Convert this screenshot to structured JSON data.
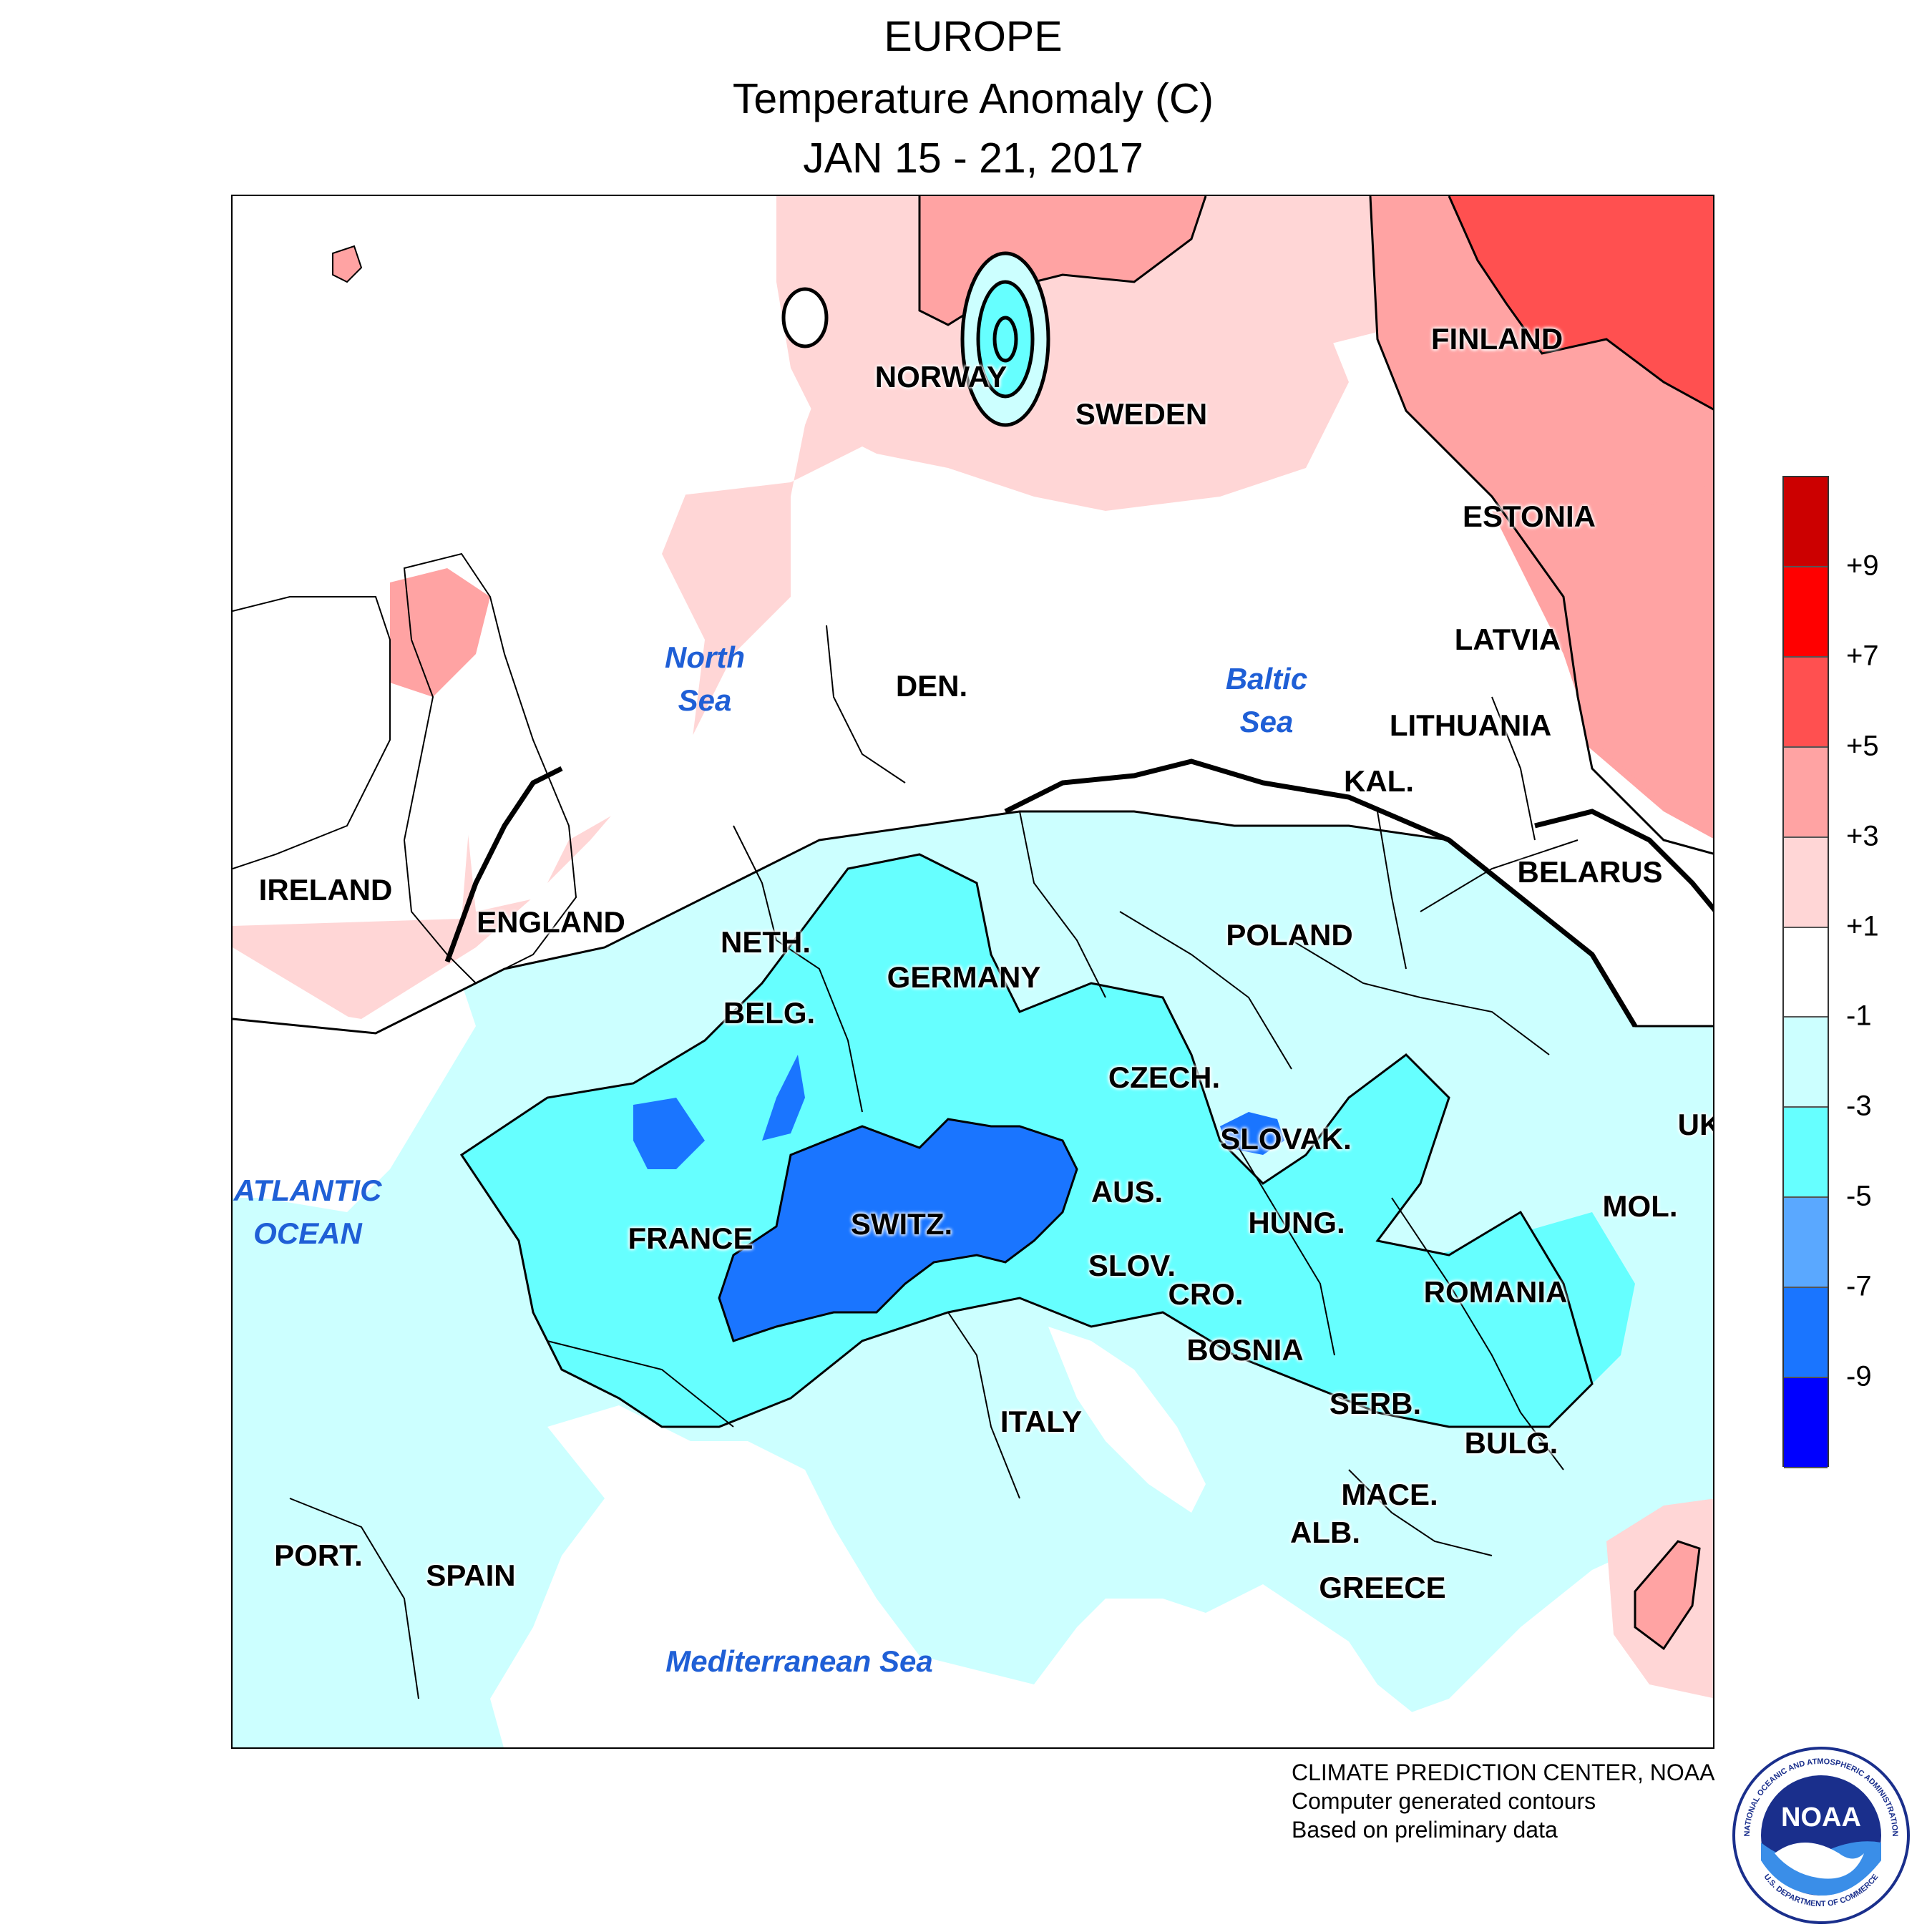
{
  "header": {
    "region": "EUROPE",
    "metric": "Temperature Anomaly (C)",
    "period": "JAN 15 - 21, 2017"
  },
  "map": {
    "country_labels": [
      "IRELAND",
      "ENGLAND",
      "NETH.",
      "BELG.",
      "GERMANY",
      "FRANCE",
      "SWITZ.",
      "NORWAY",
      "SWEDEN",
      "FINLAND",
      "DEN.",
      "ESTONIA",
      "LATVIA",
      "LITHUANIA",
      "KAL.",
      "BELARUS",
      "POLAND",
      "CZECH.",
      "SLOVAK.",
      "AUS.",
      "HUNG.",
      "SLOV.",
      "CRO.",
      "BOSNIA",
      "SERB.",
      "ROMANIA",
      "MOL.",
      "UK",
      "BULG.",
      "MACE.",
      "ALB.",
      "GREECE",
      "ITALY",
      "PORT.",
      "SPAIN"
    ],
    "water_labels": [
      {
        "line1": "North",
        "line2": "Sea"
      },
      {
        "line1": "Baltic",
        "line2": "Sea"
      },
      {
        "line1": "ATLANTIC",
        "line2": "OCEAN"
      },
      {
        "line1": "Mediterranean Sea",
        "line2": ""
      }
    ]
  },
  "legend": {
    "colors": [
      "#cc0000",
      "#ff0000",
      "#ff5050",
      "#ffa3a3",
      "#ffd6d6",
      "#ffffff",
      "#ccffff",
      "#66ffff",
      "#5aa8ff",
      "#1a75ff",
      "#0000ff"
    ],
    "ticks": [
      "+9",
      "+7",
      "+5",
      "+3",
      "+1",
      "-1",
      "-3",
      "-5",
      "-7",
      "-9"
    ]
  },
  "credits": {
    "line1": "CLIMATE PREDICTION CENTER, NOAA",
    "line2": "Computer generated contours",
    "line3": "Based on preliminary data"
  },
  "logo": {
    "wordmark": "NOAA",
    "ring_top": "NATIONAL OCEANIC AND ATMOSPHERIC ADMINISTRATION",
    "ring_bottom": "U.S. DEPARTMENT OF COMMERCE"
  }
}
